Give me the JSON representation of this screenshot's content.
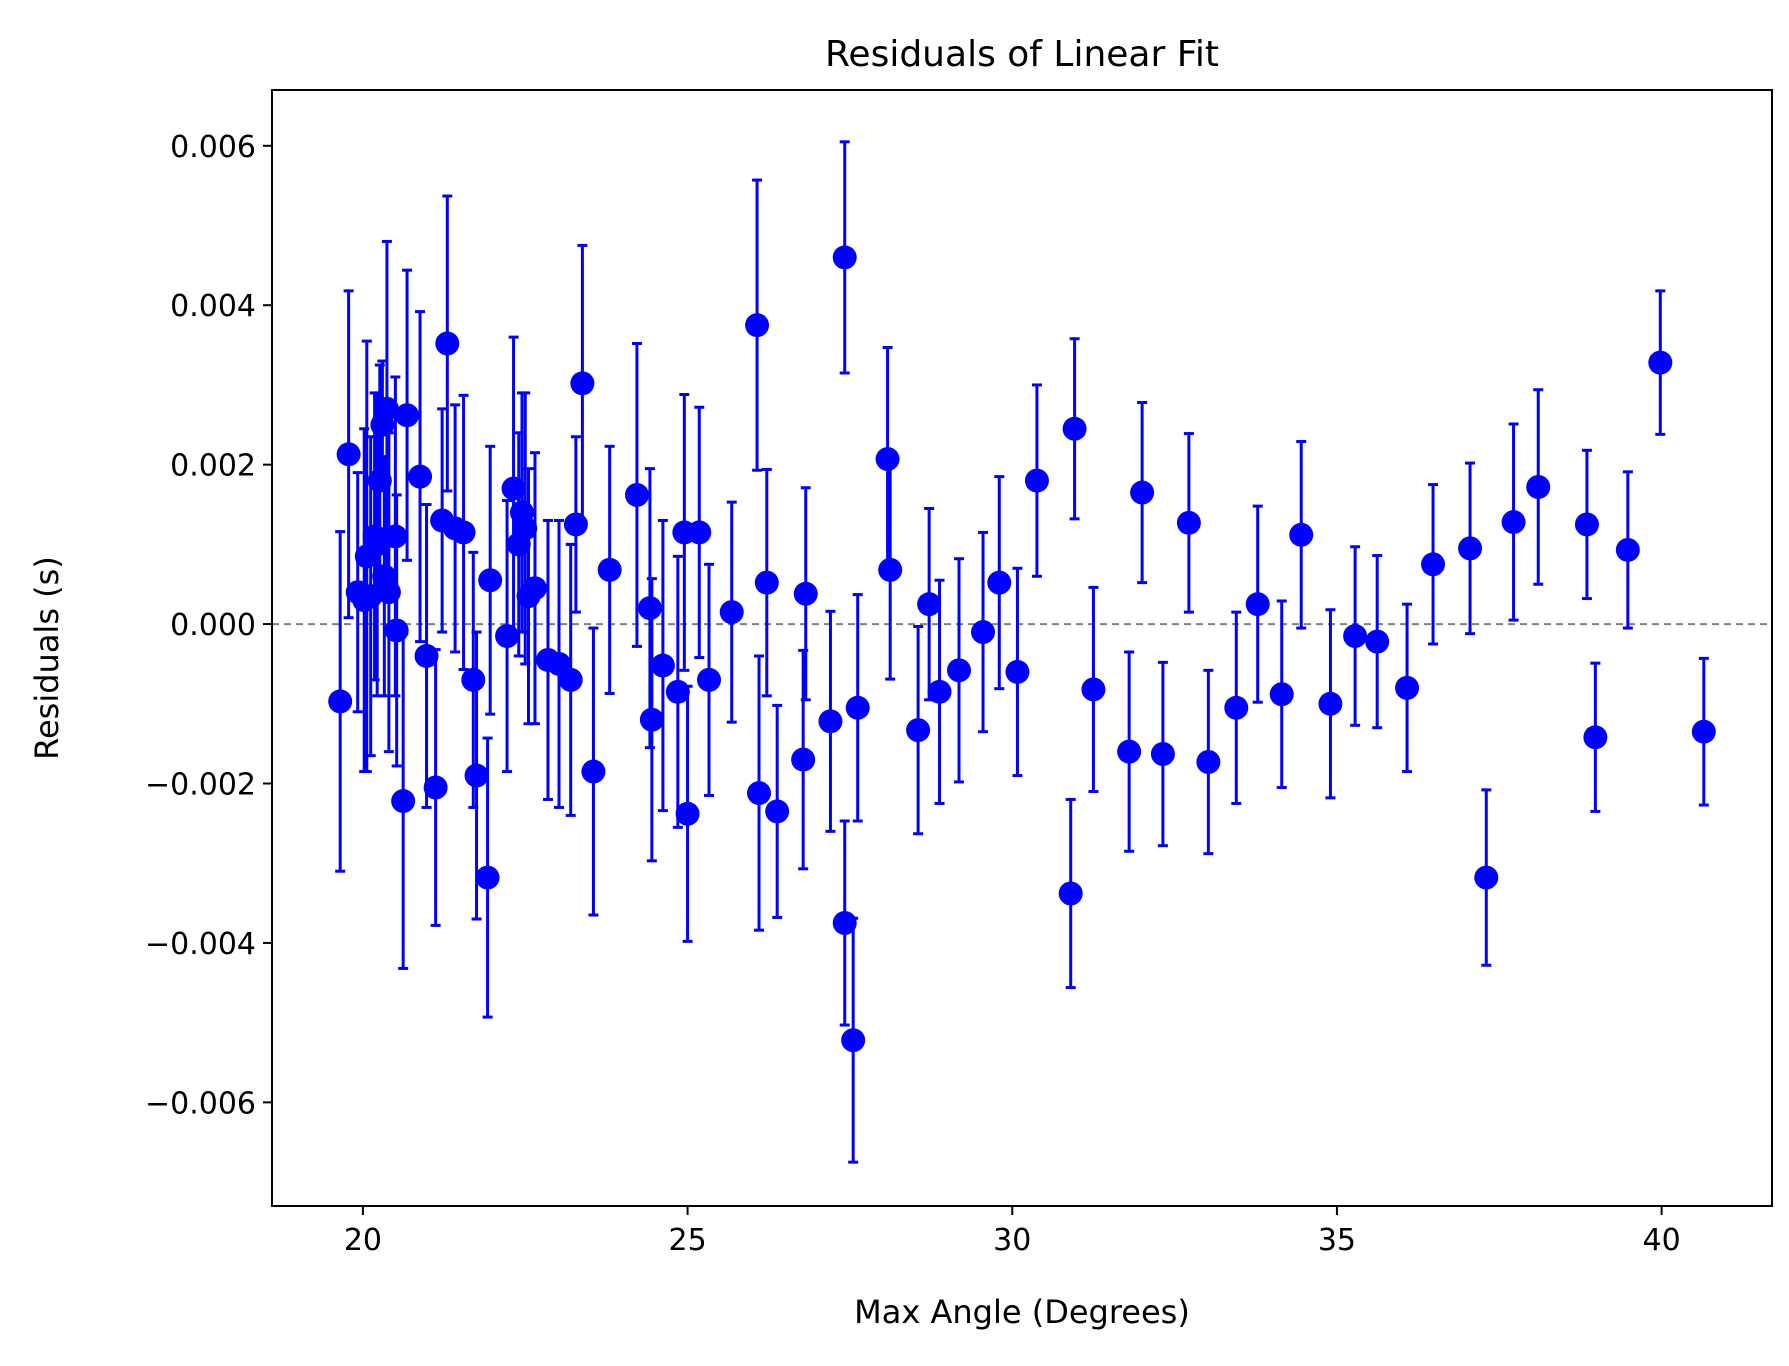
{
  "chart_data": {
    "type": "scatter",
    "title": "Residuals of Linear Fit",
    "xlabel": "Max Angle (Degrees)",
    "ylabel": "Residuals (s)",
    "xlim": [
      18.6,
      41.7
    ],
    "ylim": [
      -0.0073,
      0.0067
    ],
    "xticks": [
      20,
      25,
      30,
      35,
      40
    ],
    "xtick_labels": [
      "20",
      "25",
      "30",
      "35",
      "40"
    ],
    "yticks": [
      -0.006,
      -0.004,
      -0.002,
      0.0,
      0.002,
      0.004,
      0.006
    ],
    "ytick_labels": [
      "−0.006",
      "−0.004",
      "−0.002",
      "0.000",
      "0.002",
      "0.004",
      "0.006"
    ],
    "zero_line": {
      "y": 0.0,
      "style": "dashed",
      "color": "#808080"
    },
    "grid": false,
    "colors": {
      "points": "#0000ff",
      "errorbars": "#0000ff"
    },
    "series": [
      {
        "points": [
          {
            "x": 19.65,
            "y": -0.00097,
            "err": 0.00213
          },
          {
            "x": 19.78,
            "y": 0.00213,
            "err": 0.00205
          },
          {
            "x": 19.92,
            "y": 0.0004,
            "err": 0.0015
          },
          {
            "x": 20.02,
            "y": 0.0003,
            "err": 0.00215
          },
          {
            "x": 20.06,
            "y": 0.00085,
            "err": 0.0027
          },
          {
            "x": 20.12,
            "y": 0.00035,
            "err": 0.002
          },
          {
            "x": 20.18,
            "y": 0.0011,
            "err": 0.0018
          },
          {
            "x": 20.22,
            "y": 0.001,
            "err": 0.0019
          },
          {
            "x": 20.26,
            "y": 0.0018,
            "err": 0.00145
          },
          {
            "x": 20.3,
            "y": 0.0025,
            "err": 0.0008
          },
          {
            "x": 20.33,
            "y": 0.0006,
            "err": 0.0015
          },
          {
            "x": 20.37,
            "y": 0.0027,
            "err": 0.0021
          },
          {
            "x": 20.4,
            "y": 0.0004,
            "err": 0.002
          },
          {
            "x": 20.5,
            "y": 0.0011,
            "err": 0.002
          },
          {
            "x": 20.52,
            "y": -8e-05,
            "err": 0.0017
          },
          {
            "x": 20.62,
            "y": -0.00222,
            "err": 0.0021
          },
          {
            "x": 20.68,
            "y": 0.00262,
            "err": 0.00182
          },
          {
            "x": 20.88,
            "y": 0.00185,
            "err": 0.00207
          },
          {
            "x": 20.98,
            "y": -0.0004,
            "err": 0.0019
          },
          {
            "x": 21.12,
            "y": -0.00205,
            "err": 0.00173
          },
          {
            "x": 21.22,
            "y": 0.0013,
            "err": 0.0014
          },
          {
            "x": 21.3,
            "y": 0.00352,
            "err": 0.00185
          },
          {
            "x": 21.42,
            "y": 0.0012,
            "err": 0.00155
          },
          {
            "x": 21.55,
            "y": 0.00115,
            "err": 0.00172
          },
          {
            "x": 21.7,
            "y": -0.0007,
            "err": 0.0016
          },
          {
            "x": 21.75,
            "y": -0.0019,
            "err": 0.0018
          },
          {
            "x": 21.92,
            "y": -0.00318,
            "err": 0.00175
          },
          {
            "x": 21.96,
            "y": 0.00055,
            "err": 0.00168
          },
          {
            "x": 22.22,
            "y": -0.00015,
            "err": 0.0017
          },
          {
            "x": 22.32,
            "y": 0.0017,
            "err": 0.0019
          },
          {
            "x": 22.4,
            "y": 0.001,
            "err": 0.0014
          },
          {
            "x": 22.45,
            "y": 0.0014,
            "err": 0.0015
          },
          {
            "x": 22.5,
            "y": 0.0012,
            "err": 0.0017
          },
          {
            "x": 22.55,
            "y": 0.00035,
            "err": 0.0016
          },
          {
            "x": 22.65,
            "y": 0.00045,
            "err": 0.0017
          },
          {
            "x": 22.85,
            "y": -0.00045,
            "err": 0.00175
          },
          {
            "x": 23.02,
            "y": -0.0005,
            "err": 0.0018
          },
          {
            "x": 23.2,
            "y": -0.0007,
            "err": 0.0017
          },
          {
            "x": 23.28,
            "y": 0.00125,
            "err": 0.0011
          },
          {
            "x": 23.38,
            "y": 0.00302,
            "err": 0.00173
          },
          {
            "x": 23.55,
            "y": -0.00185,
            "err": 0.0018
          },
          {
            "x": 23.8,
            "y": 0.00068,
            "err": 0.00155
          },
          {
            "x": 24.22,
            "y": 0.00162,
            "err": 0.0019
          },
          {
            "x": 24.42,
            "y": 0.0002,
            "err": 0.00175
          },
          {
            "x": 24.45,
            "y": -0.0012,
            "err": 0.00177
          },
          {
            "x": 24.62,
            "y": -0.00052,
            "err": 0.00182
          },
          {
            "x": 24.85,
            "y": -0.00085,
            "err": 0.0017
          },
          {
            "x": 24.95,
            "y": 0.00115,
            "err": 0.00173
          },
          {
            "x": 25.0,
            "y": -0.00238,
            "err": 0.0016
          },
          {
            "x": 25.18,
            "y": 0.00115,
            "err": 0.00157
          },
          {
            "x": 25.33,
            "y": -0.0007,
            "err": 0.00145
          },
          {
            "x": 25.68,
            "y": 0.00015,
            "err": 0.00138
          },
          {
            "x": 26.07,
            "y": 0.00375,
            "err": 0.00182
          },
          {
            "x": 26.1,
            "y": -0.00212,
            "err": 0.00172
          },
          {
            "x": 26.22,
            "y": 0.00052,
            "err": 0.00142
          },
          {
            "x": 26.38,
            "y": -0.00235,
            "err": 0.00133
          },
          {
            "x": 26.78,
            "y": -0.0017,
            "err": 0.00137
          },
          {
            "x": 26.82,
            "y": 0.00038,
            "err": 0.00133
          },
          {
            "x": 27.2,
            "y": -0.00122,
            "err": 0.00138
          },
          {
            "x": 27.42,
            "y": 0.0046,
            "err": 0.00145
          },
          {
            "x": 27.42,
            "y": -0.00375,
            "err": 0.00128
          },
          {
            "x": 27.55,
            "y": -0.00522,
            "err": 0.00153
          },
          {
            "x": 27.62,
            "y": -0.00105,
            "err": 0.00142
          },
          {
            "x": 28.08,
            "y": 0.00207,
            "err": 0.0014
          },
          {
            "x": 28.12,
            "y": 0.00068,
            "err": 0.00137
          },
          {
            "x": 28.55,
            "y": -0.00133,
            "err": 0.0013
          },
          {
            "x": 28.72,
            "y": 0.00025,
            "err": 0.0012
          },
          {
            "x": 28.88,
            "y": -0.00085,
            "err": 0.0014
          },
          {
            "x": 29.18,
            "y": -0.00058,
            "err": 0.0014
          },
          {
            "x": 29.55,
            "y": -0.0001,
            "err": 0.00125
          },
          {
            "x": 29.8,
            "y": 0.00052,
            "err": 0.00133
          },
          {
            "x": 30.08,
            "y": -0.0006,
            "err": 0.0013
          },
          {
            "x": 30.38,
            "y": 0.0018,
            "err": 0.0012
          },
          {
            "x": 30.9,
            "y": -0.00338,
            "err": 0.00118
          },
          {
            "x": 30.96,
            "y": 0.00245,
            "err": 0.00113
          },
          {
            "x": 31.25,
            "y": -0.00082,
            "err": 0.00128
          },
          {
            "x": 31.8,
            "y": -0.0016,
            "err": 0.00125
          },
          {
            "x": 32.0,
            "y": 0.00165,
            "err": 0.00113
          },
          {
            "x": 32.32,
            "y": -0.00163,
            "err": 0.00115
          },
          {
            "x": 32.72,
            "y": 0.00127,
            "err": 0.00112
          },
          {
            "x": 33.02,
            "y": -0.00173,
            "err": 0.00115
          },
          {
            "x": 33.45,
            "y": -0.00105,
            "err": 0.0012
          },
          {
            "x": 33.78,
            "y": 0.00025,
            "err": 0.00123
          },
          {
            "x": 34.15,
            "y": -0.00088,
            "err": 0.00117
          },
          {
            "x": 34.45,
            "y": 0.00112,
            "err": 0.00117
          },
          {
            "x": 34.9,
            "y": -0.001,
            "err": 0.00118
          },
          {
            "x": 35.28,
            "y": -0.00015,
            "err": 0.00112
          },
          {
            "x": 35.62,
            "y": -0.00022,
            "err": 0.00108
          },
          {
            "x": 36.08,
            "y": -0.0008,
            "err": 0.00105
          },
          {
            "x": 36.48,
            "y": 0.00075,
            "err": 0.001
          },
          {
            "x": 37.05,
            "y": 0.00095,
            "err": 0.00107
          },
          {
            "x": 37.3,
            "y": -0.00318,
            "err": 0.0011
          },
          {
            "x": 37.72,
            "y": 0.00128,
            "err": 0.00123
          },
          {
            "x": 38.1,
            "y": 0.00172,
            "err": 0.00122
          },
          {
            "x": 38.85,
            "y": 0.00125,
            "err": 0.00093
          },
          {
            "x": 38.98,
            "y": -0.00142,
            "err": 0.00093
          },
          {
            "x": 39.48,
            "y": 0.00093,
            "err": 0.00098
          },
          {
            "x": 39.98,
            "y": 0.00328,
            "err": 0.0009
          },
          {
            "x": 40.65,
            "y": -0.00135,
            "err": 0.00092
          }
        ]
      }
    ]
  }
}
